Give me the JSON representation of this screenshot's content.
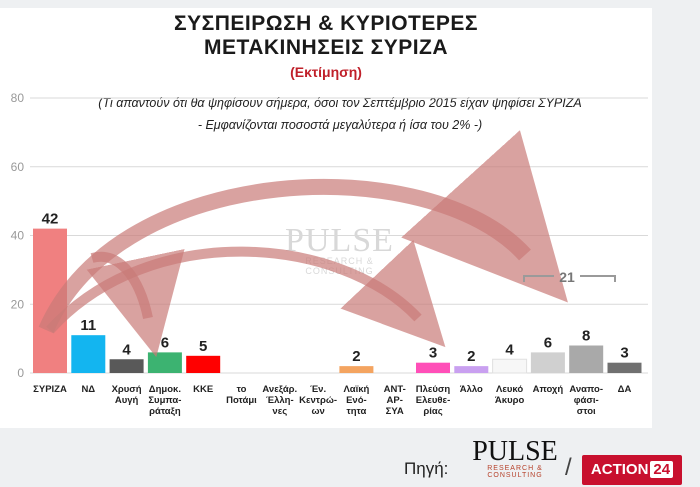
{
  "title_line1": "ΣΥΣΠΕΙΡΩΣΗ & ΚΥΡΙΟΤΕΡΕΣ",
  "title_line2": "ΜΕΤΑΚΙΝΗΣΕΙΣ ΣΥΡΙΖΑ",
  "subtitle": "(Εκτίμηση)",
  "note_line1": "(Τι απαντούν ότι θα ψηφίσουν σήμερα, όσοι τον Σεπτέμβριο 2015 είχαν ψηφίσει ΣΥΡΙΖΑ",
  "note_line2": "- Εμφανίζονται ποσοστά μεγαλύτερα ή ίσα του 2% -)",
  "watermark": {
    "main": "PULSE",
    "sub": "RESEARCH & CONSULTING"
  },
  "footer": {
    "source_label": "Πηγή:",
    "pulse_main": "PULSE",
    "pulse_sub": "RESEARCH & CONSULTING",
    "slash": "/",
    "action_text": "ACTION",
    "action_num": "24"
  },
  "colors": {
    "arrow": "#c97a78",
    "grid": "#d9d9d9",
    "axis_text": "#999999"
  },
  "chart_data": {
    "type": "bar",
    "ylim": [
      0,
      80
    ],
    "yticks": [
      0,
      20,
      40,
      60,
      80
    ],
    "grid": true,
    "bracket_label": "21",
    "bars": [
      {
        "label": [
          "ΣΥΡΙΖΑ"
        ],
        "value": 42,
        "value_label": "42",
        "color": "#f08080"
      },
      {
        "label": [
          "ΝΔ"
        ],
        "value": 11,
        "value_label": "11",
        "color": "#13b5f0"
      },
      {
        "label": [
          "Χρυσή",
          "Αυγή"
        ],
        "value": 4,
        "value_label": "4",
        "color": "#595959"
      },
      {
        "label": [
          "Δημοκ.",
          "Συμπα-",
          "ράταξη"
        ],
        "value": 6,
        "value_label": "6",
        "color": "#3cb371"
      },
      {
        "label": [
          "ΚΚΕ"
        ],
        "value": 5,
        "value_label": "5",
        "color": "#ff0000"
      },
      {
        "label": [
          "το",
          "Ποτάμι"
        ],
        "value": null,
        "value_label": "",
        "color": "#1e90ff"
      },
      {
        "label": [
          "Ανεξάρ.",
          "Έλλη-",
          "νες"
        ],
        "value": null,
        "value_label": "",
        "color": "#1e90ff"
      },
      {
        "label": [
          "Έν.",
          "Κεντρώ-",
          "ων"
        ],
        "value": null,
        "value_label": "",
        "color": "#1e90ff"
      },
      {
        "label": [
          "Λαϊκή",
          "Ενό-",
          "τητα"
        ],
        "value": 2,
        "value_label": "2",
        "color": "#f4a460"
      },
      {
        "label": [
          "ΑΝΤ-",
          "ΑΡ-",
          "ΣΥΑ"
        ],
        "value": null,
        "value_label": "",
        "color": "#8b0000"
      },
      {
        "label": [
          "Πλεύση",
          "Ελευθε-",
          "ρίας"
        ],
        "value": 3,
        "value_label": "3",
        "color": "#ff4fb8"
      },
      {
        "label": [
          "Άλλο"
        ],
        "value": 2,
        "value_label": "2",
        "color": "#c9a0f0"
      },
      {
        "label": [
          "Λευκό",
          "Άκυρο"
        ],
        "value": 4,
        "value_label": "4",
        "color": "#f7f7f7"
      },
      {
        "label": [
          "Αποχή"
        ],
        "value": 6,
        "value_label": "6",
        "color": "#d0d0d0"
      },
      {
        "label": [
          "Αναπο-",
          "φάσι-",
          "στοι"
        ],
        "value": 8,
        "value_label": "8",
        "color": "#a9a9a9"
      },
      {
        "label": [
          "ΔΑ"
        ],
        "value": 3,
        "value_label": "3",
        "color": "#707070"
      }
    ]
  }
}
